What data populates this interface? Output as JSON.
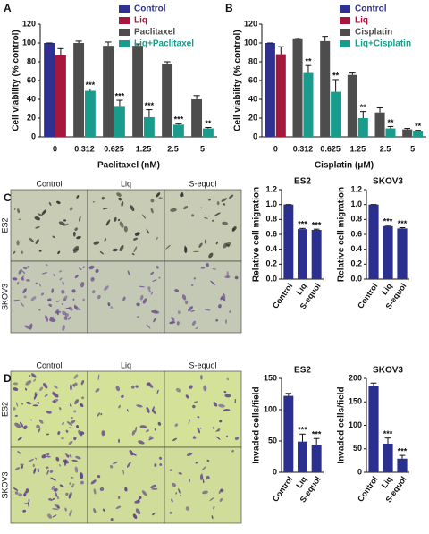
{
  "panels": [
    "A",
    "B",
    "C",
    "D"
  ],
  "micrographs": [
    {
      "columns": [
        "Control",
        "Liq",
        "S-equol"
      ],
      "rows": [
        "ES2",
        "SKOV3"
      ]
    },
    {
      "columns": [
        "Control",
        "Liq",
        "S-equol"
      ],
      "rows": [
        "ES2",
        "SKOV3"
      ]
    }
  ],
  "chart_data": [
    {
      "type": "bar",
      "xlabel": "Paclitaxel (nM)",
      "ylabel": "Cell viability (% control)",
      "categories": [
        "0",
        "0.312",
        "0.625",
        "1.25",
        "2.5",
        "5"
      ],
      "ylim": [
        0,
        120
      ],
      "yticks": [
        0,
        20,
        40,
        60,
        80,
        100,
        120
      ],
      "legend": "upper right",
      "series": [
        {
          "name": "Control",
          "color": "#2e3192",
          "values": [
            100,
            null,
            null,
            null,
            null,
            null
          ],
          "errors": [
            0,
            null,
            null,
            null,
            null,
            null
          ]
        },
        {
          "name": "Liq",
          "color": "#a5173d",
          "values": [
            87,
            null,
            null,
            null,
            null,
            null
          ],
          "errors": [
            7,
            null,
            null,
            null,
            null,
            null
          ]
        },
        {
          "name": "Paclitaxel",
          "color": "#4d4d4d",
          "values": [
            null,
            100,
            97,
            97,
            78,
            40
          ],
          "errors": [
            null,
            2,
            4,
            2,
            2,
            4
          ]
        },
        {
          "name": "Liq+Paclitaxel",
          "color": "#1a9c8c",
          "values": [
            null,
            49,
            32,
            21,
            13,
            9
          ],
          "errors": [
            null,
            2,
            7,
            8,
            1,
            1
          ],
          "labels": [
            null,
            "***",
            "***",
            "***",
            "***",
            "**"
          ]
        }
      ]
    },
    {
      "type": "bar",
      "xlabel": "Cisplatin (μM)",
      "ylabel": "Cell viability (% control)",
      "categories": [
        "0",
        "0.312",
        "0.625",
        "1.25",
        "2.5",
        "5"
      ],
      "ylim": [
        0,
        120
      ],
      "yticks": [
        0,
        20,
        40,
        60,
        80,
        100,
        120
      ],
      "legend": "upper right",
      "series": [
        {
          "name": "Control",
          "color": "#2e3192",
          "values": [
            100,
            null,
            null,
            null,
            null,
            null
          ],
          "errors": [
            0,
            null,
            null,
            null,
            null,
            null
          ]
        },
        {
          "name": "Liq",
          "color": "#a5173d",
          "values": [
            88,
            null,
            null,
            null,
            null,
            null
          ],
          "errors": [
            8,
            null,
            null,
            null,
            null,
            null
          ]
        },
        {
          "name": "Cisplatin",
          "color": "#4d4d4d",
          "values": [
            null,
            104,
            102,
            66,
            26,
            8
          ],
          "errors": [
            null,
            1,
            5,
            2,
            5,
            1
          ]
        },
        {
          "name": "Liq+Cisplatin",
          "color": "#1a9c8c",
          "values": [
            null,
            68,
            48,
            20,
            9,
            6
          ],
          "errors": [
            null,
            8,
            13,
            7,
            2,
            1
          ],
          "labels": [
            null,
            "**",
            "**",
            "**",
            "**",
            "**"
          ]
        }
      ]
    },
    {
      "type": "bar",
      "title": "ES2",
      "ylabel": "Relative cell migration",
      "color": "#2b2f8f",
      "categories": [
        "Control",
        "Liq",
        "S-equol"
      ],
      "values": [
        1.0,
        0.67,
        0.66
      ],
      "errors": [
        0,
        0.01,
        0.01
      ],
      "labels": [
        null,
        "***",
        "***"
      ],
      "ylim": [
        0,
        1.2
      ],
      "yticks": [
        {
          "value": 0,
          "label": "0.0"
        },
        0.2,
        0.4,
        0.6,
        0.8,
        {
          "value": 1,
          "label": "1.0"
        },
        1.2
      ]
    },
    {
      "type": "bar",
      "title": "SKOV3",
      "ylabel": "Relative cell migration",
      "color": "#2b2f8f",
      "categories": [
        "Control",
        "Liq",
        "S-equol"
      ],
      "values": [
        1.0,
        0.71,
        0.68
      ],
      "errors": [
        0,
        0.01,
        0.01
      ],
      "labels": [
        null,
        "***",
        "***"
      ],
      "ylim": [
        0,
        1.2
      ],
      "yticks": [
        {
          "value": 0,
          "label": "0.0"
        },
        0.2,
        0.4,
        0.6,
        0.8,
        {
          "value": 1,
          "label": "1.0"
        },
        1.2
      ]
    },
    {
      "type": "bar",
      "title": "ES2",
      "ylabel": "Invaded cells/field",
      "color": "#2b2f8f",
      "categories": [
        "Control",
        "Liq",
        "S-equol"
      ],
      "values": [
        122,
        49,
        44
      ],
      "errors": [
        4,
        12,
        10
      ],
      "labels": [
        null,
        "***",
        "***"
      ],
      "ylim": [
        0,
        150
      ],
      "yticks": [
        0,
        50,
        100,
        150
      ]
    },
    {
      "type": "bar",
      "title": "SKOV3",
      "ylabel": "Invaded cells/field",
      "color": "#2b2f8f",
      "categories": [
        "Control",
        "Liq",
        "S-equol"
      ],
      "values": [
        183,
        61,
        29
      ],
      "errors": [
        7,
        12,
        7
      ],
      "labels": [
        null,
        "***",
        "***"
      ],
      "ylim": [
        0,
        200
      ],
      "yticks": [
        0,
        50,
        100,
        150,
        200
      ]
    }
  ]
}
